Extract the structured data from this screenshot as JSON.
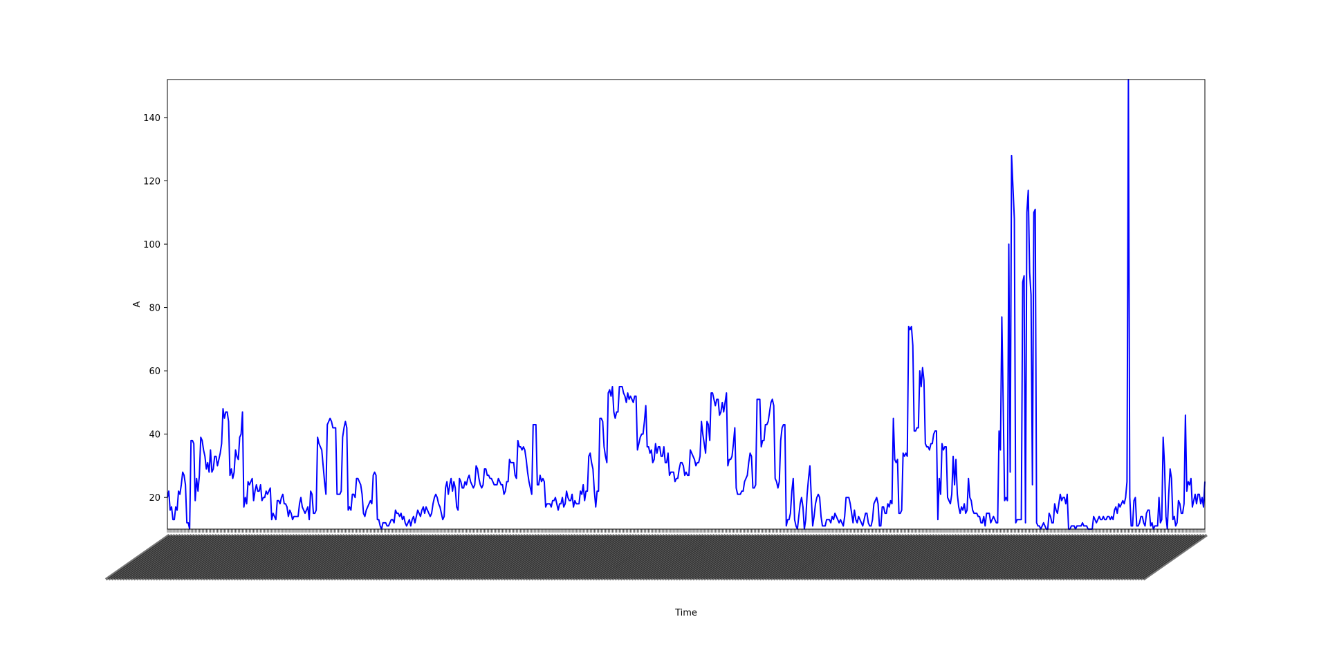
{
  "chart_data": {
    "type": "line",
    "title": "",
    "xlabel": "Time",
    "ylabel": "A",
    "ylim": [
      10,
      152
    ],
    "yticks": [
      20,
      40,
      60,
      80,
      100,
      120,
      140
    ],
    "grid": false,
    "legend": "none",
    "x_tick_labels": "dense, overlapping and illegible",
    "line_color": "#0000ff",
    "series": [
      {
        "values": [
          20,
          22,
          16,
          17,
          13,
          13,
          17,
          16,
          22,
          21,
          24,
          28,
          27,
          24,
          12,
          12,
          10,
          38,
          38,
          37,
          19,
          26,
          22,
          27,
          39,
          38,
          35,
          33,
          29,
          31,
          28,
          35,
          28,
          29,
          33,
          33,
          30,
          32,
          34,
          37,
          48,
          45,
          47,
          47,
          44,
          27,
          29,
          26,
          28,
          35,
          33,
          32,
          39,
          40,
          47,
          17,
          20,
          18,
          25,
          24,
          25,
          26,
          19,
          22,
          24,
          22,
          22,
          24,
          19,
          20,
          20,
          22,
          21,
          22,
          23,
          13,
          15,
          14,
          13,
          19,
          19,
          18,
          20,
          21,
          18,
          18,
          17,
          14,
          16,
          15,
          13,
          14,
          14,
          14,
          14,
          18,
          20,
          17,
          16,
          15,
          16,
          17,
          13,
          22,
          21,
          15,
          15,
          16,
          39,
          37,
          36,
          35,
          30,
          25,
          21,
          43,
          44,
          45,
          44,
          42,
          42,
          42,
          21,
          21,
          21,
          22,
          39,
          42,
          44,
          42,
          16,
          17,
          16,
          21,
          21,
          20,
          26,
          26,
          25,
          24,
          21,
          15,
          14,
          16,
          17,
          18,
          19,
          18,
          27,
          28,
          27,
          13,
          13,
          11,
          10,
          12,
          12,
          12,
          11,
          11,
          12,
          13,
          13,
          12,
          16,
          15,
          15,
          14,
          15,
          13,
          14,
          12,
          11,
          12,
          13,
          11,
          13,
          14,
          12,
          14,
          16,
          15,
          14,
          16,
          17,
          15,
          17,
          16,
          15,
          14,
          15,
          18,
          20,
          21,
          20,
          18,
          17,
          15,
          13,
          14,
          23,
          25,
          21,
          24,
          26,
          22,
          25,
          23,
          17,
          16,
          26,
          25,
          23,
          23,
          25,
          24,
          26,
          27,
          25,
          24,
          23,
          24,
          30,
          29,
          26,
          24,
          23,
          24,
          29,
          29,
          27,
          27,
          26,
          26,
          25,
          24,
          24,
          24,
          26,
          25,
          24,
          24,
          21,
          22,
          25,
          25,
          32,
          31,
          31,
          31,
          27,
          26,
          38,
          36,
          36,
          35,
          36,
          35,
          32,
          28,
          25,
          23,
          21,
          43,
          43,
          43,
          24,
          24,
          27,
          25,
          26,
          25,
          17,
          18,
          18,
          18,
          17,
          19,
          19,
          20,
          18,
          16,
          18,
          18,
          20,
          17,
          18,
          22,
          20,
          19,
          19,
          21,
          17,
          19,
          18,
          18,
          18,
          22,
          21,
          24,
          19,
          22,
          22,
          33,
          34,
          31,
          29,
          22,
          17,
          22,
          22,
          45,
          45,
          44,
          36,
          33,
          31,
          53,
          54,
          52,
          55,
          47,
          45,
          47,
          47,
          55,
          55,
          55,
          53,
          52,
          50,
          53,
          51,
          52,
          51,
          50,
          52,
          52,
          35,
          37,
          39,
          40,
          40,
          44,
          49,
          36,
          36,
          34,
          35,
          31,
          32,
          37,
          34,
          36,
          36,
          33,
          33,
          36,
          31,
          31,
          34,
          27,
          28,
          28,
          28,
          25,
          26,
          26,
          29,
          31,
          31,
          30,
          27,
          28,
          27,
          27,
          35,
          34,
          33,
          32,
          30,
          31,
          31,
          33,
          44,
          40,
          37,
          34,
          44,
          43,
          38,
          53,
          53,
          51,
          49,
          51,
          51,
          46,
          47,
          50,
          47,
          50,
          53,
          30,
          32,
          32,
          33,
          37,
          42,
          23,
          21,
          21,
          21,
          22,
          22,
          25,
          26,
          27,
          31,
          34,
          33,
          23,
          23,
          24,
          51,
          51,
          51,
          36,
          38,
          38,
          43,
          43,
          44,
          47,
          50,
          51,
          49,
          26,
          25,
          23,
          25,
          38,
          42,
          43,
          43,
          11,
          13,
          13,
          15,
          22,
          26,
          13,
          11,
          10,
          14,
          18,
          20,
          17,
          10,
          13,
          21,
          26,
          30,
          20,
          11,
          14,
          18,
          20,
          21,
          20,
          14,
          11,
          11,
          11,
          13,
          13,
          13,
          12,
          14,
          13,
          15,
          14,
          13,
          12,
          13,
          12,
          11,
          14,
          20,
          20,
          20,
          18,
          15,
          12,
          16,
          13,
          12,
          14,
          13,
          12,
          11,
          13,
          15,
          15,
          12,
          11,
          11,
          13,
          18,
          19,
          20,
          18,
          11,
          11,
          17,
          17,
          15,
          15,
          18,
          17,
          19,
          18,
          45,
          32,
          31,
          32,
          15,
          15,
          16,
          34,
          33,
          34,
          33,
          74,
          73,
          74,
          68,
          41,
          41,
          42,
          42,
          60,
          55,
          61,
          57,
          37,
          36,
          36,
          35,
          37,
          37,
          40,
          41,
          41,
          13,
          26,
          21,
          37,
          35,
          36,
          36,
          20,
          19,
          18,
          21,
          33,
          24,
          32,
          21,
          17,
          15,
          17,
          16,
          18,
          15,
          16,
          26,
          20,
          19,
          16,
          15,
          15,
          15,
          14,
          14,
          12,
          12,
          14,
          11,
          15,
          15,
          15,
          12,
          13,
          14,
          13,
          12,
          12,
          41,
          35,
          77,
          49,
          19,
          20,
          19,
          100,
          28,
          128,
          118,
          108,
          12,
          13,
          13,
          13,
          13,
          88,
          90,
          12,
          110,
          117,
          91,
          84,
          24,
          110,
          111,
          12,
          11,
          11,
          10,
          11,
          12,
          11,
          10,
          10,
          15,
          14,
          12,
          12,
          18,
          16,
          15,
          18,
          21,
          19,
          20,
          20,
          18,
          21,
          10,
          10,
          11,
          11,
          11,
          10,
          11,
          11,
          11,
          11,
          12,
          11,
          11,
          11,
          10,
          10,
          10,
          10,
          14,
          13,
          12,
          13,
          14,
          13,
          13,
          14,
          13,
          13,
          14,
          14,
          13,
          14,
          13,
          16,
          17,
          15,
          18,
          17,
          18,
          19,
          18,
          20,
          25,
          152,
          20,
          11,
          11,
          19,
          20,
          11,
          11,
          12,
          14,
          14,
          12,
          11,
          15,
          16,
          16,
          11,
          12,
          10,
          11,
          11,
          11,
          20,
          12,
          13,
          39,
          30,
          14,
          10,
          21,
          29,
          26,
          13,
          14,
          11,
          12,
          19,
          18,
          15,
          15,
          18,
          46,
          22,
          25,
          24,
          26,
          17,
          19,
          21,
          18,
          21,
          21,
          18,
          20,
          17,
          25
        ]
      }
    ]
  }
}
